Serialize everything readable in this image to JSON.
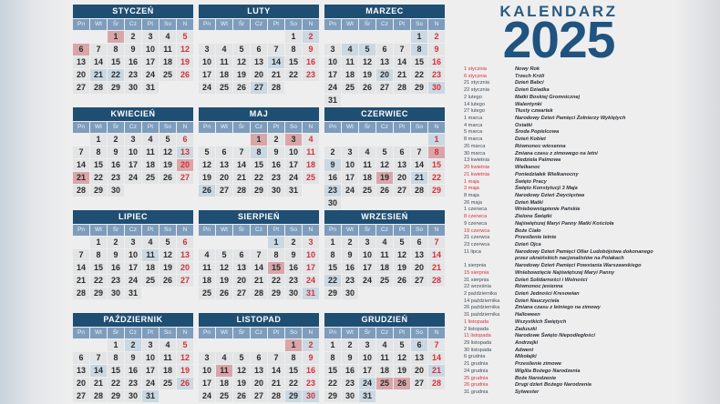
{
  "title": {
    "line1": "KALENDARZ",
    "line2": "2025"
  },
  "weekdays": [
    "Pn",
    "Wt",
    "Śr",
    "Cz",
    "Pt",
    "So",
    "N"
  ],
  "colors": {
    "header": "#1f4e73",
    "weekday_row": "#7e9dbd",
    "sunday_text": "#d4303c",
    "public_holiday_bg": "#d9a6a8",
    "observance_bg": "#c9d8e2"
  },
  "months": [
    {
      "name": "STYCZEŃ",
      "first_weekday": 2,
      "days": 31,
      "red": [
        1,
        6
      ],
      "blue": [
        21,
        22
      ]
    },
    {
      "name": "LUTY",
      "first_weekday": 5,
      "days": 28,
      "red": [],
      "blue": [
        2,
        14,
        27
      ]
    },
    {
      "name": "MARZEC",
      "first_weekday": 5,
      "days": 31,
      "red": [],
      "blue": [
        1,
        4,
        5,
        8,
        20,
        30
      ]
    },
    {
      "name": "KWIECIEŃ",
      "first_weekday": 1,
      "days": 30,
      "red": [
        20,
        21
      ],
      "blue": [
        13
      ]
    },
    {
      "name": "MAJ",
      "first_weekday": 3,
      "days": 31,
      "red": [
        1,
        3
      ],
      "blue": [
        8,
        26
      ]
    },
    {
      "name": "CZERWIEC",
      "first_weekday": 6,
      "days": 30,
      "red": [
        8,
        19
      ],
      "blue": [
        1,
        9,
        21,
        23
      ]
    },
    {
      "name": "LIPIEC",
      "first_weekday": 1,
      "days": 31,
      "red": [],
      "blue": [
        11
      ]
    },
    {
      "name": "SIERPIEŃ",
      "first_weekday": 4,
      "days": 31,
      "red": [
        15
      ],
      "blue": [
        1,
        31
      ]
    },
    {
      "name": "WRZESIEŃ",
      "first_weekday": 0,
      "days": 30,
      "red": [],
      "blue": [
        22
      ]
    },
    {
      "name": "PAŹDZIERNIK",
      "first_weekday": 2,
      "days": 31,
      "red": [],
      "blue": [
        2,
        14,
        26,
        31
      ]
    },
    {
      "name": "LISTOPAD",
      "first_weekday": 5,
      "days": 30,
      "red": [
        1,
        11
      ],
      "blue": [
        2,
        29,
        30
      ]
    },
    {
      "name": "GRUDZIEŃ",
      "first_weekday": 0,
      "days": 31,
      "red": [
        25,
        26
      ],
      "blue": [
        6,
        21,
        24,
        31
      ]
    }
  ],
  "holidays": [
    {
      "date": "1 stycznia",
      "name": "Nowy Rok",
      "public": true
    },
    {
      "date": "6 stycznia",
      "name": "Trzech Króli",
      "public": true
    },
    {
      "date": "21 stycznia",
      "name": "Dzień Babci"
    },
    {
      "date": "22 stycznia",
      "name": "Dzień Dziadka"
    },
    {
      "date": "2 lutego",
      "name": "Matki Boskiej Gromnicznej"
    },
    {
      "date": "14 lutego",
      "name": "Walentynki"
    },
    {
      "date": "27 lutego",
      "name": "Tłusty czwartek"
    },
    {
      "date": "1 marca",
      "name": "Narodowy Dzień Pamięci Żołnierzy Wyklętych"
    },
    {
      "date": "4 marca",
      "name": "Ostatki"
    },
    {
      "date": "5 marca",
      "name": "Środa Popielcowa"
    },
    {
      "date": "8 marca",
      "name": "Dzień Kobiet"
    },
    {
      "date": "20 marca",
      "name": "Równonoc wiosenna"
    },
    {
      "date": "30 marca",
      "name": "Zmiana czasu z zimowego na letni"
    },
    {
      "date": "13 kwietnia",
      "name": "Niedziela Palmowa"
    },
    {
      "date": "20 kwietnia",
      "name": "Wielkanoc",
      "public": true
    },
    {
      "date": "21 kwietnia",
      "name": "Poniedziałek Wielkanocny",
      "public": true
    },
    {
      "date": "1 maja",
      "name": "Święto Pracy",
      "public": true
    },
    {
      "date": "3 maja",
      "name": "Święto Konstytucji 3 Maja",
      "public": true
    },
    {
      "date": "8 maja",
      "name": "Narodowy Dzień Zwycięstwa"
    },
    {
      "date": "26 maja",
      "name": "Dzień Matki"
    },
    {
      "date": "1 czerwca",
      "name": "Wniebowstąpienie Pańskie"
    },
    {
      "date": "8 czerwca",
      "name": "Zielone Świątki",
      "public": true
    },
    {
      "date": "9 czerwca",
      "name": "Najświętszej Maryi Panny Matki Kościoła"
    },
    {
      "date": "19 czerwca",
      "name": "Boże Ciało",
      "public": true
    },
    {
      "date": "21 czerwca",
      "name": "Przesilenie letnie"
    },
    {
      "date": "23 czerwca",
      "name": "Dzień Ojca"
    },
    {
      "date": "11 lipca",
      "name": "Narodowy Dzień Pamięci Ofiar Ludobójstwa dokonanego",
      "name2": "przez ukraińskich nacjonalistów na Polakach"
    },
    {
      "date": "1 sierpnia",
      "name": "Narodowy Dzień Pamięci Powstania Warszawskiego"
    },
    {
      "date": "15 sierpnia",
      "name": "Wniebowzięcie Najświętszej Maryi Panny",
      "public": true
    },
    {
      "date": "31 sierpnia",
      "name": "Dzień Solidarności i Wolności"
    },
    {
      "date": "22 września",
      "name": "Równonoc jesienna"
    },
    {
      "date": "2 października",
      "name": "Dzień Jedności Kresowian"
    },
    {
      "date": "14 października",
      "name": "Dzień Nauczyciela"
    },
    {
      "date": "26 października",
      "name": "Zmiana czasu z letniego na zimowy"
    },
    {
      "date": "31 października",
      "name": "Halloween"
    },
    {
      "date": "1 listopada",
      "name": "Wszystkich Świętych",
      "public": true
    },
    {
      "date": "2 listopada",
      "name": "Zaduszki"
    },
    {
      "date": "11 listopada",
      "name": "Narodowe Święto Niepodległości",
      "public": true
    },
    {
      "date": "29 listopada",
      "name": "Andrzejki"
    },
    {
      "date": "30 listopada",
      "name": "Adwent"
    },
    {
      "date": "6 grudnia",
      "name": "Mikołajki"
    },
    {
      "date": "21 grudnia",
      "name": "Przesilenie zimowe"
    },
    {
      "date": "24 grudnia",
      "name": "Wigilia Bożego Narodzenia"
    },
    {
      "date": "25 grudnia",
      "name": "Boże Narodzenie",
      "public": true
    },
    {
      "date": "26 grudnia",
      "name": "Drugi dzień Bożego Narodzenia",
      "public": true
    },
    {
      "date": "31 grudnia",
      "name": "Sylwester"
    }
  ]
}
